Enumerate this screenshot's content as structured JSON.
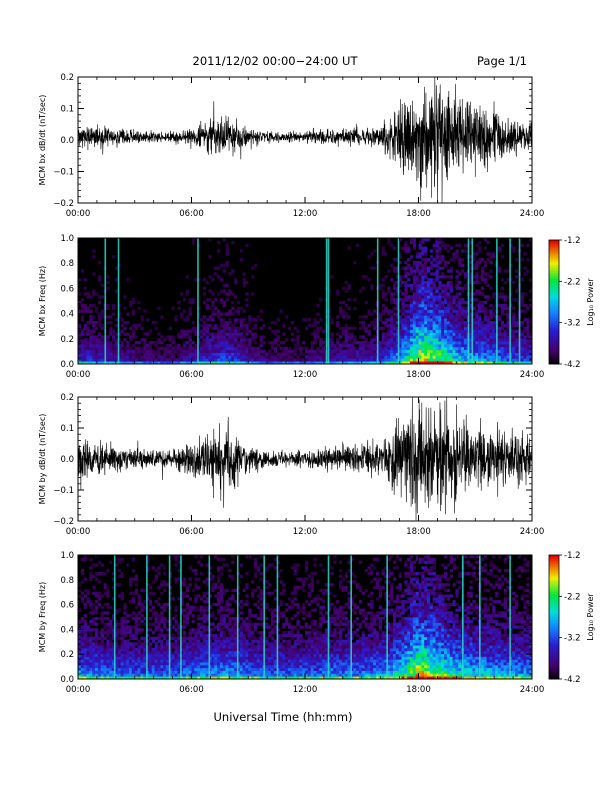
{
  "header": {
    "title": "2011/12/02  00:00−24:00 UT",
    "page": "Page 1/1"
  },
  "xlabel": "Universal Time (hh:mm)",
  "colorbar": {
    "label": "Log₁₀ Power",
    "ticks": [
      "-1.2",
      "-2.2",
      "-3.2",
      "-4.2"
    ],
    "range": [
      -4.2,
      -1.2
    ]
  },
  "chart_data": [
    {
      "type": "line",
      "ylabel": "MCM bx dB/dt (nT/sec)",
      "xlim": [
        0,
        24
      ],
      "ylim": [
        -0.2,
        0.2
      ],
      "xticks": [
        "00:00",
        "06:00",
        "12:00",
        "18:00",
        "24:00"
      ],
      "yticks": [
        "0.2",
        "0.1",
        "0.0",
        "−0.1",
        "−0.2"
      ],
      "x_hours": [
        0,
        1,
        2,
        3,
        4,
        5,
        6,
        7,
        8,
        9,
        10,
        11,
        12,
        13,
        14,
        15,
        16,
        17,
        18,
        19,
        20,
        21,
        22,
        23,
        24
      ],
      "amplitude": [
        0.04,
        0.035,
        0.03,
        0.025,
        0.02,
        0.02,
        0.03,
        0.06,
        0.07,
        0.03,
        0.02,
        0.02,
        0.02,
        0.025,
        0.03,
        0.03,
        0.035,
        0.12,
        0.2,
        0.2,
        0.14,
        0.12,
        0.1,
        0.06,
        0.05
      ],
      "offset": 0.01
    },
    {
      "type": "heatmap",
      "ylabel": "MCM bx Freq (Hz)",
      "xlim": [
        0,
        24
      ],
      "ylim": [
        0,
        1.0
      ],
      "xticks": [
        "00:00",
        "06:00",
        "12:00",
        "18:00",
        "24:00"
      ],
      "yticks": [
        "1.0",
        "0.8",
        "0.6",
        "0.4",
        "0.2",
        "0.0"
      ],
      "x_hours": [
        0,
        1,
        2,
        3,
        4,
        5,
        6,
        7,
        8,
        9,
        10,
        11,
        12,
        13,
        14,
        15,
        16,
        17,
        18,
        19,
        20,
        21,
        22,
        23,
        24
      ],
      "activity": [
        0.35,
        0.3,
        0.25,
        0.2,
        0.15,
        0.15,
        0.25,
        0.35,
        0.4,
        0.25,
        0.15,
        0.15,
        0.15,
        0.2,
        0.25,
        0.25,
        0.3,
        0.55,
        0.95,
        0.85,
        0.65,
        0.55,
        0.5,
        0.4,
        0.35
      ],
      "background_log_power": -4.2,
      "vertical_bands_hours": [
        1.4,
        2.1,
        6.3,
        13.1,
        13.2,
        15.8,
        16.9,
        20.6,
        20.8,
        22.1,
        22.8,
        23.3
      ]
    },
    {
      "type": "line",
      "ylabel": "MCM by dB/dt (nT/sec)",
      "xlim": [
        0,
        24
      ],
      "ylim": [
        -0.2,
        0.2
      ],
      "xticks": [
        "00:00",
        "06:00",
        "12:00",
        "18:00",
        "24:00"
      ],
      "yticks": [
        "0.2",
        "0.1",
        "0.0",
        "−0.1",
        "−0.2"
      ],
      "x_hours": [
        0,
        1,
        2,
        3,
        4,
        5,
        6,
        7,
        8,
        9,
        10,
        11,
        12,
        13,
        14,
        15,
        16,
        17,
        18,
        19,
        20,
        21,
        22,
        23,
        24
      ],
      "amplitude": [
        0.09,
        0.07,
        0.05,
        0.04,
        0.03,
        0.03,
        0.06,
        0.1,
        0.12,
        0.05,
        0.03,
        0.03,
        0.03,
        0.04,
        0.05,
        0.05,
        0.06,
        0.15,
        0.2,
        0.2,
        0.16,
        0.13,
        0.12,
        0.09,
        0.08
      ],
      "offset": 0.0
    },
    {
      "type": "heatmap",
      "ylabel": "MCM by Freq (Hz)",
      "xlim": [
        0,
        24
      ],
      "ylim": [
        0,
        1.0
      ],
      "xticks": [
        "00:00",
        "06:00",
        "12:00",
        "18:00",
        "24:00"
      ],
      "yticks": [
        "1.0",
        "0.8",
        "0.6",
        "0.4",
        "0.2",
        "0.0"
      ],
      "x_hours": [
        0,
        1,
        2,
        3,
        4,
        5,
        6,
        7,
        8,
        9,
        10,
        11,
        12,
        13,
        14,
        15,
        16,
        17,
        18,
        19,
        20,
        21,
        22,
        23,
        24
      ],
      "activity": [
        0.55,
        0.5,
        0.45,
        0.45,
        0.45,
        0.45,
        0.5,
        0.55,
        0.55,
        0.5,
        0.45,
        0.45,
        0.45,
        0.5,
        0.5,
        0.5,
        0.55,
        0.7,
        0.95,
        0.85,
        0.7,
        0.65,
        0.6,
        0.55,
        0.55
      ],
      "background_log_power": -3.4,
      "vertical_bands_hours": [
        1.9,
        3.6,
        4.8,
        5.4,
        6.9,
        8.4,
        9.8,
        10.5,
        13.2,
        14.4,
        16.3,
        20.3,
        21.2,
        22.8
      ]
    }
  ]
}
